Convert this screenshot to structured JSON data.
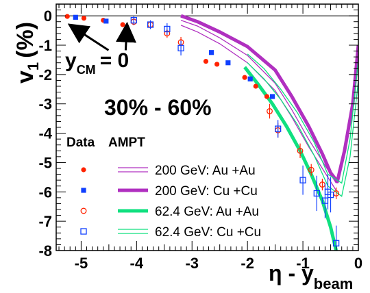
{
  "chart_data": {
    "type": "scatter",
    "xlabel": "η - y",
    "xlabel_sub": "beam",
    "ylabel": "v",
    "ylabel_sub": "1",
    "ylabel_unit": "(%)",
    "xlim": [
      -5.45,
      0
    ],
    "ylim": [
      -8,
      0.4
    ],
    "x_ticks": [
      -5,
      -4,
      -3,
      -2,
      -1,
      0
    ],
    "y_ticks": [
      0,
      -1,
      -2,
      -3,
      -4,
      -5,
      -6,
      -7,
      -8
    ],
    "centrality_label": "30% - 60%",
    "annotation": {
      "label_main": "y",
      "label_sub": "CM",
      "label_rest": "= 0",
      "x": -5.0,
      "y": -1.5
    },
    "legend": {
      "header_data": "Data",
      "header_model": "AMPT",
      "placement": "bottom-left"
    },
    "colors": {
      "red": "#ff2200",
      "blue": "#1040ff",
      "magenta": "#b030c0",
      "green": "#10e080"
    },
    "data_series": [
      {
        "name": "200 GeV: Au +Au",
        "marker": "filled-circle",
        "color": "#ff2200",
        "points": [
          {
            "x": -5.25,
            "y": -0.02
          },
          {
            "x": -4.95,
            "y": -0.08
          },
          {
            "x": -4.6,
            "y": -0.15
          },
          {
            "x": -4.25,
            "y": -0.3
          },
          {
            "x": -2.75,
            "y": -1.55
          },
          {
            "x": -2.55,
            "y": -1.65
          },
          {
            "x": -2.05,
            "y": -2.1
          },
          {
            "x": -1.85,
            "y": -2.4
          },
          {
            "x": -1.65,
            "y": -2.75
          }
        ]
      },
      {
        "name": "200 GeV: Cu +Cu",
        "marker": "filled-square",
        "color": "#1040ff",
        "points": [
          {
            "x": -5.1,
            "y": -0.05
          },
          {
            "x": -4.55,
            "y": -0.18
          },
          {
            "x": -2.65,
            "y": -1.25
          },
          {
            "x": -2.35,
            "y": -1.6
          },
          {
            "x": -1.95,
            "y": -2.15
          },
          {
            "x": -1.55,
            "y": -2.75
          }
        ]
      },
      {
        "name": "62.4 GeV: Au +Au",
        "marker": "open-circle",
        "color": "#ff2200",
        "points": [
          {
            "x": -4.05,
            "y": -0.2,
            "err": 0.12
          },
          {
            "x": -3.75,
            "y": -0.3,
            "err": 0.12
          },
          {
            "x": -3.45,
            "y": -0.6,
            "err": 0.15
          },
          {
            "x": -3.2,
            "y": -0.9,
            "err": 0.18
          },
          {
            "x": -1.6,
            "y": -3.25,
            "err": 0.25
          },
          {
            "x": -1.45,
            "y": -3.9,
            "err": 0.25
          },
          {
            "x": -1.05,
            "y": -4.6,
            "err": 0.25
          },
          {
            "x": -0.85,
            "y": -5.25,
            "err": 0.2
          },
          {
            "x": -0.65,
            "y": -5.75,
            "err": 0.2
          },
          {
            "x": -0.4,
            "y": -6.05,
            "err": 0.2
          }
        ]
      },
      {
        "name": "62.4 GeV: Cu +Cu",
        "marker": "open-square",
        "color": "#1040ff",
        "points": [
          {
            "x": -4.05,
            "y": -0.15,
            "err": 0.15
          },
          {
            "x": -3.75,
            "y": -0.3,
            "err": 0.15
          },
          {
            "x": -3.45,
            "y": -0.45,
            "err": 0.2
          },
          {
            "x": -3.2,
            "y": -1.1,
            "err": 0.25
          },
          {
            "x": -1.45,
            "y": -3.85,
            "err": 0.3
          },
          {
            "x": -1.0,
            "y": -5.6,
            "err": 0.5
          },
          {
            "x": -0.75,
            "y": -6.05,
            "err": 0.6
          },
          {
            "x": -0.55,
            "y": -6.0,
            "err": 0.6
          },
          {
            "x": -0.5,
            "y": -6.1,
            "err": 0.6
          },
          {
            "x": -0.6,
            "y": -6.3,
            "err": 0.6
          },
          {
            "x": -0.4,
            "y": -7.75,
            "err": 0.6
          }
        ]
      }
    ],
    "model_series": [
      {
        "name": "200 GeV: Au +Au",
        "style": "thin-double",
        "color": "#b030c0",
        "upper": [
          [
            -3.2,
            -0.15
          ],
          [
            -2.9,
            -0.35
          ],
          [
            -2.5,
            -0.75
          ],
          [
            -2.0,
            -1.35
          ],
          [
            -1.5,
            -2.3
          ],
          [
            -1.2,
            -3.2
          ],
          [
            -0.9,
            -4.2
          ],
          [
            -0.6,
            -5.1
          ],
          [
            -0.4,
            -5.7
          ]
        ],
        "lower": [
          [
            -3.2,
            -0.32
          ],
          [
            -2.9,
            -0.55
          ],
          [
            -2.5,
            -0.95
          ],
          [
            -2.0,
            -1.6
          ],
          [
            -1.5,
            -2.55
          ],
          [
            -1.2,
            -3.45
          ],
          [
            -0.9,
            -4.45
          ],
          [
            -0.6,
            -5.35
          ],
          [
            -0.4,
            -5.95
          ]
        ]
      },
      {
        "name": "200 GeV: Cu +Cu",
        "style": "thick",
        "color": "#b030c0",
        "points": [
          [
            -3.2,
            0.0
          ],
          [
            -2.9,
            -0.2
          ],
          [
            -2.5,
            -0.55
          ],
          [
            -2.0,
            -1.05
          ],
          [
            -1.5,
            -1.85
          ],
          [
            -1.2,
            -2.75
          ],
          [
            -0.9,
            -3.75
          ],
          [
            -0.65,
            -4.7
          ],
          [
            -0.5,
            -5.35
          ],
          [
            -0.38,
            -5.65
          ],
          [
            -0.25,
            -4.6
          ],
          [
            -0.1,
            -3.0
          ],
          [
            0.0,
            -1.0
          ]
        ]
      },
      {
        "name": "62.4 GeV: Au +Au",
        "style": "thick",
        "color": "#10e080",
        "points": [
          [
            -2.05,
            -1.75
          ],
          [
            -1.8,
            -2.35
          ],
          [
            -1.55,
            -3.0
          ],
          [
            -1.3,
            -3.75
          ],
          [
            -1.05,
            -4.6
          ],
          [
            -0.85,
            -5.4
          ],
          [
            -0.65,
            -6.3
          ],
          [
            -0.5,
            -7.2
          ],
          [
            -0.4,
            -8.0
          ]
        ]
      },
      {
        "name": "62.4 GeV: Cu +Cu",
        "style": "thin-double",
        "color": "#10e080",
        "upper": [
          [
            -2.0,
            -1.3
          ],
          [
            -1.7,
            -1.8
          ],
          [
            -1.4,
            -2.5
          ],
          [
            -1.1,
            -3.3
          ],
          [
            -0.8,
            -4.3
          ],
          [
            -0.55,
            -5.4
          ],
          [
            -0.3,
            -5.7
          ],
          [
            -0.15,
            -4.2
          ],
          [
            0.0,
            -1.5
          ]
        ],
        "lower": [
          [
            -2.0,
            -1.6
          ],
          [
            -1.7,
            -2.15
          ],
          [
            -1.4,
            -2.85
          ],
          [
            -1.1,
            -3.7
          ],
          [
            -0.8,
            -4.75
          ],
          [
            -0.55,
            -5.8
          ],
          [
            -0.3,
            -6.15
          ],
          [
            -0.15,
            -4.8
          ],
          [
            0.0,
            -2.2
          ]
        ]
      }
    ]
  }
}
